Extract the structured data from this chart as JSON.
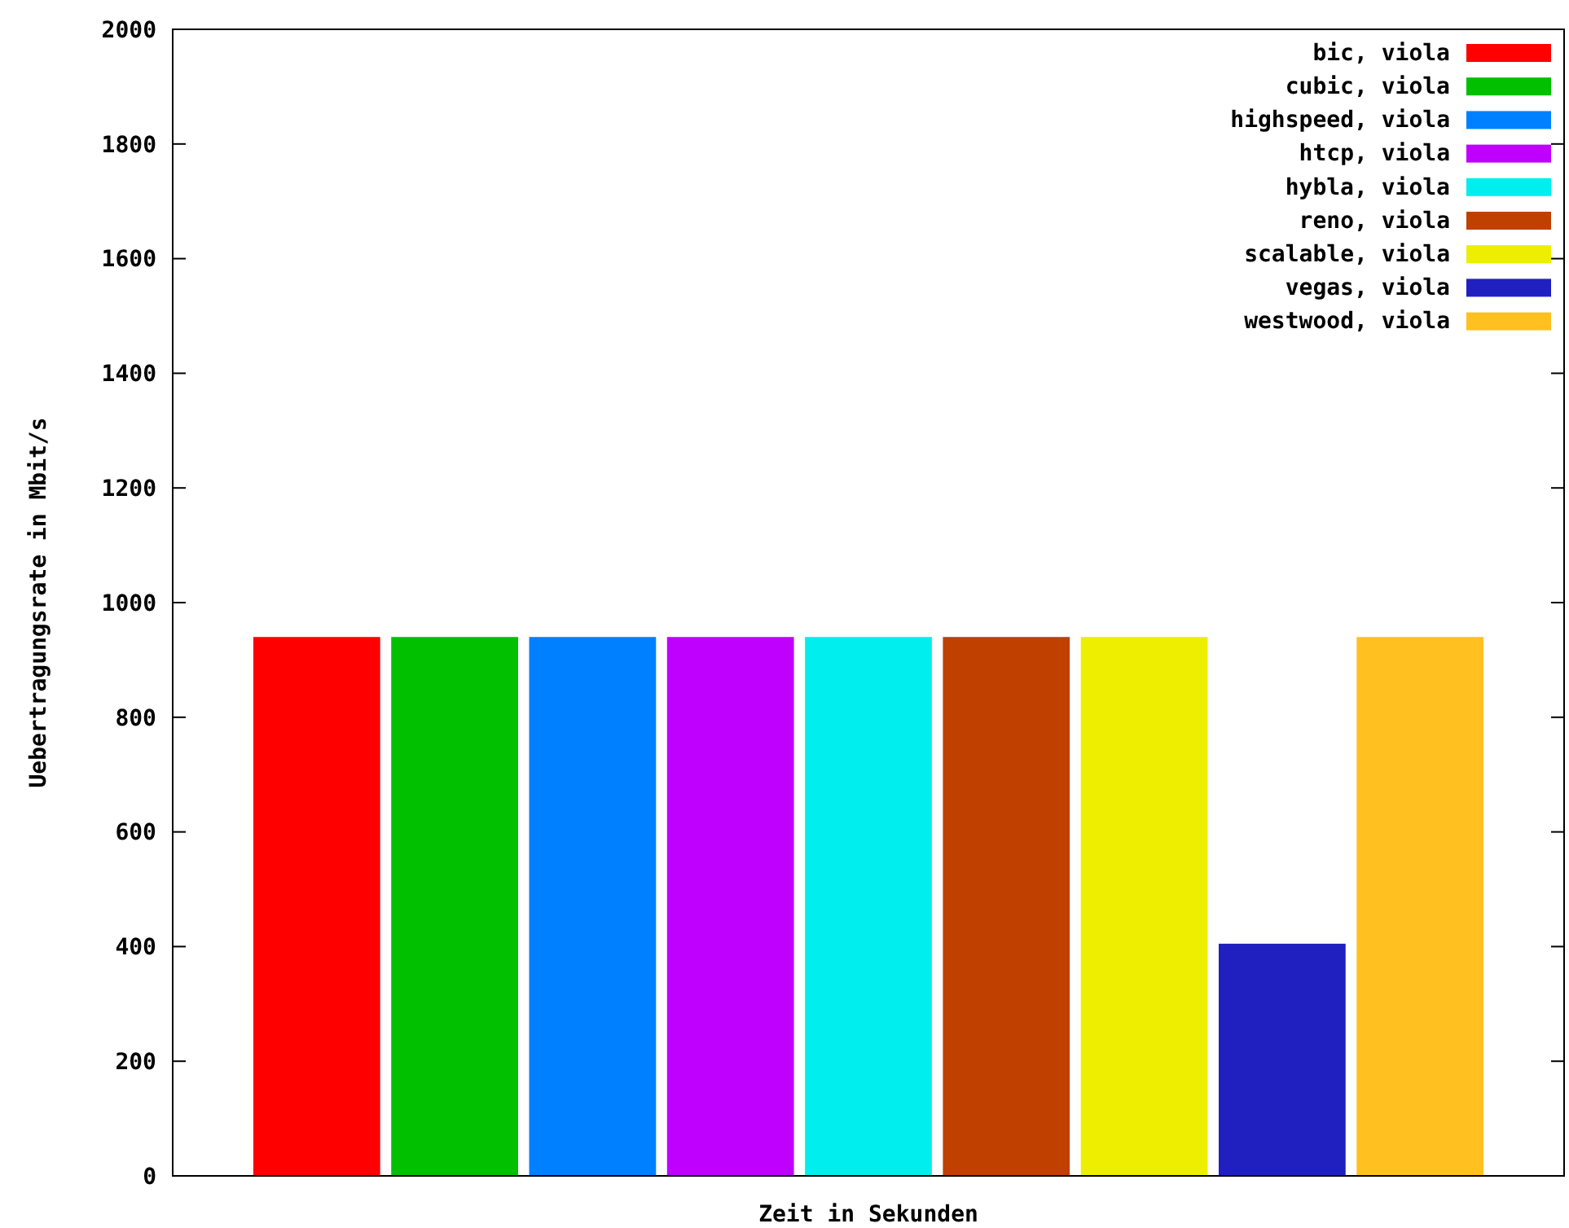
{
  "chart_data": {
    "type": "bar",
    "xlabel": "Zeit in Sekunden",
    "ylabel": "Uebertragungsrate in Mbit/s",
    "categories": [
      null
    ],
    "ylim": [
      0,
      2000
    ],
    "yticks": [
      0,
      200,
      400,
      600,
      800,
      1000,
      1200,
      1400,
      1600,
      1800,
      2000
    ],
    "grid": false,
    "legend": "top right",
    "series": [
      {
        "name": "bic, viola",
        "color": "#ff0000",
        "values": [
          940
        ]
      },
      {
        "name": "cubic, viola",
        "color": "#00c000",
        "values": [
          940
        ]
      },
      {
        "name": "highspeed, viola",
        "color": "#0080ff",
        "values": [
          940
        ]
      },
      {
        "name": "htcp, viola",
        "color": "#c000ff",
        "values": [
          940
        ]
      },
      {
        "name": "hybla, viola",
        "color": "#00eeee",
        "values": [
          940
        ]
      },
      {
        "name": "reno, viola",
        "color": "#c04000",
        "values": [
          940
        ]
      },
      {
        "name": "scalable, viola",
        "color": "#eeee00",
        "values": [
          940
        ]
      },
      {
        "name": "vegas, viola",
        "color": "#2020c0",
        "values": [
          405
        ]
      },
      {
        "name": "westwood, viola",
        "color": "#ffc020",
        "values": [
          940
        ]
      }
    ]
  }
}
